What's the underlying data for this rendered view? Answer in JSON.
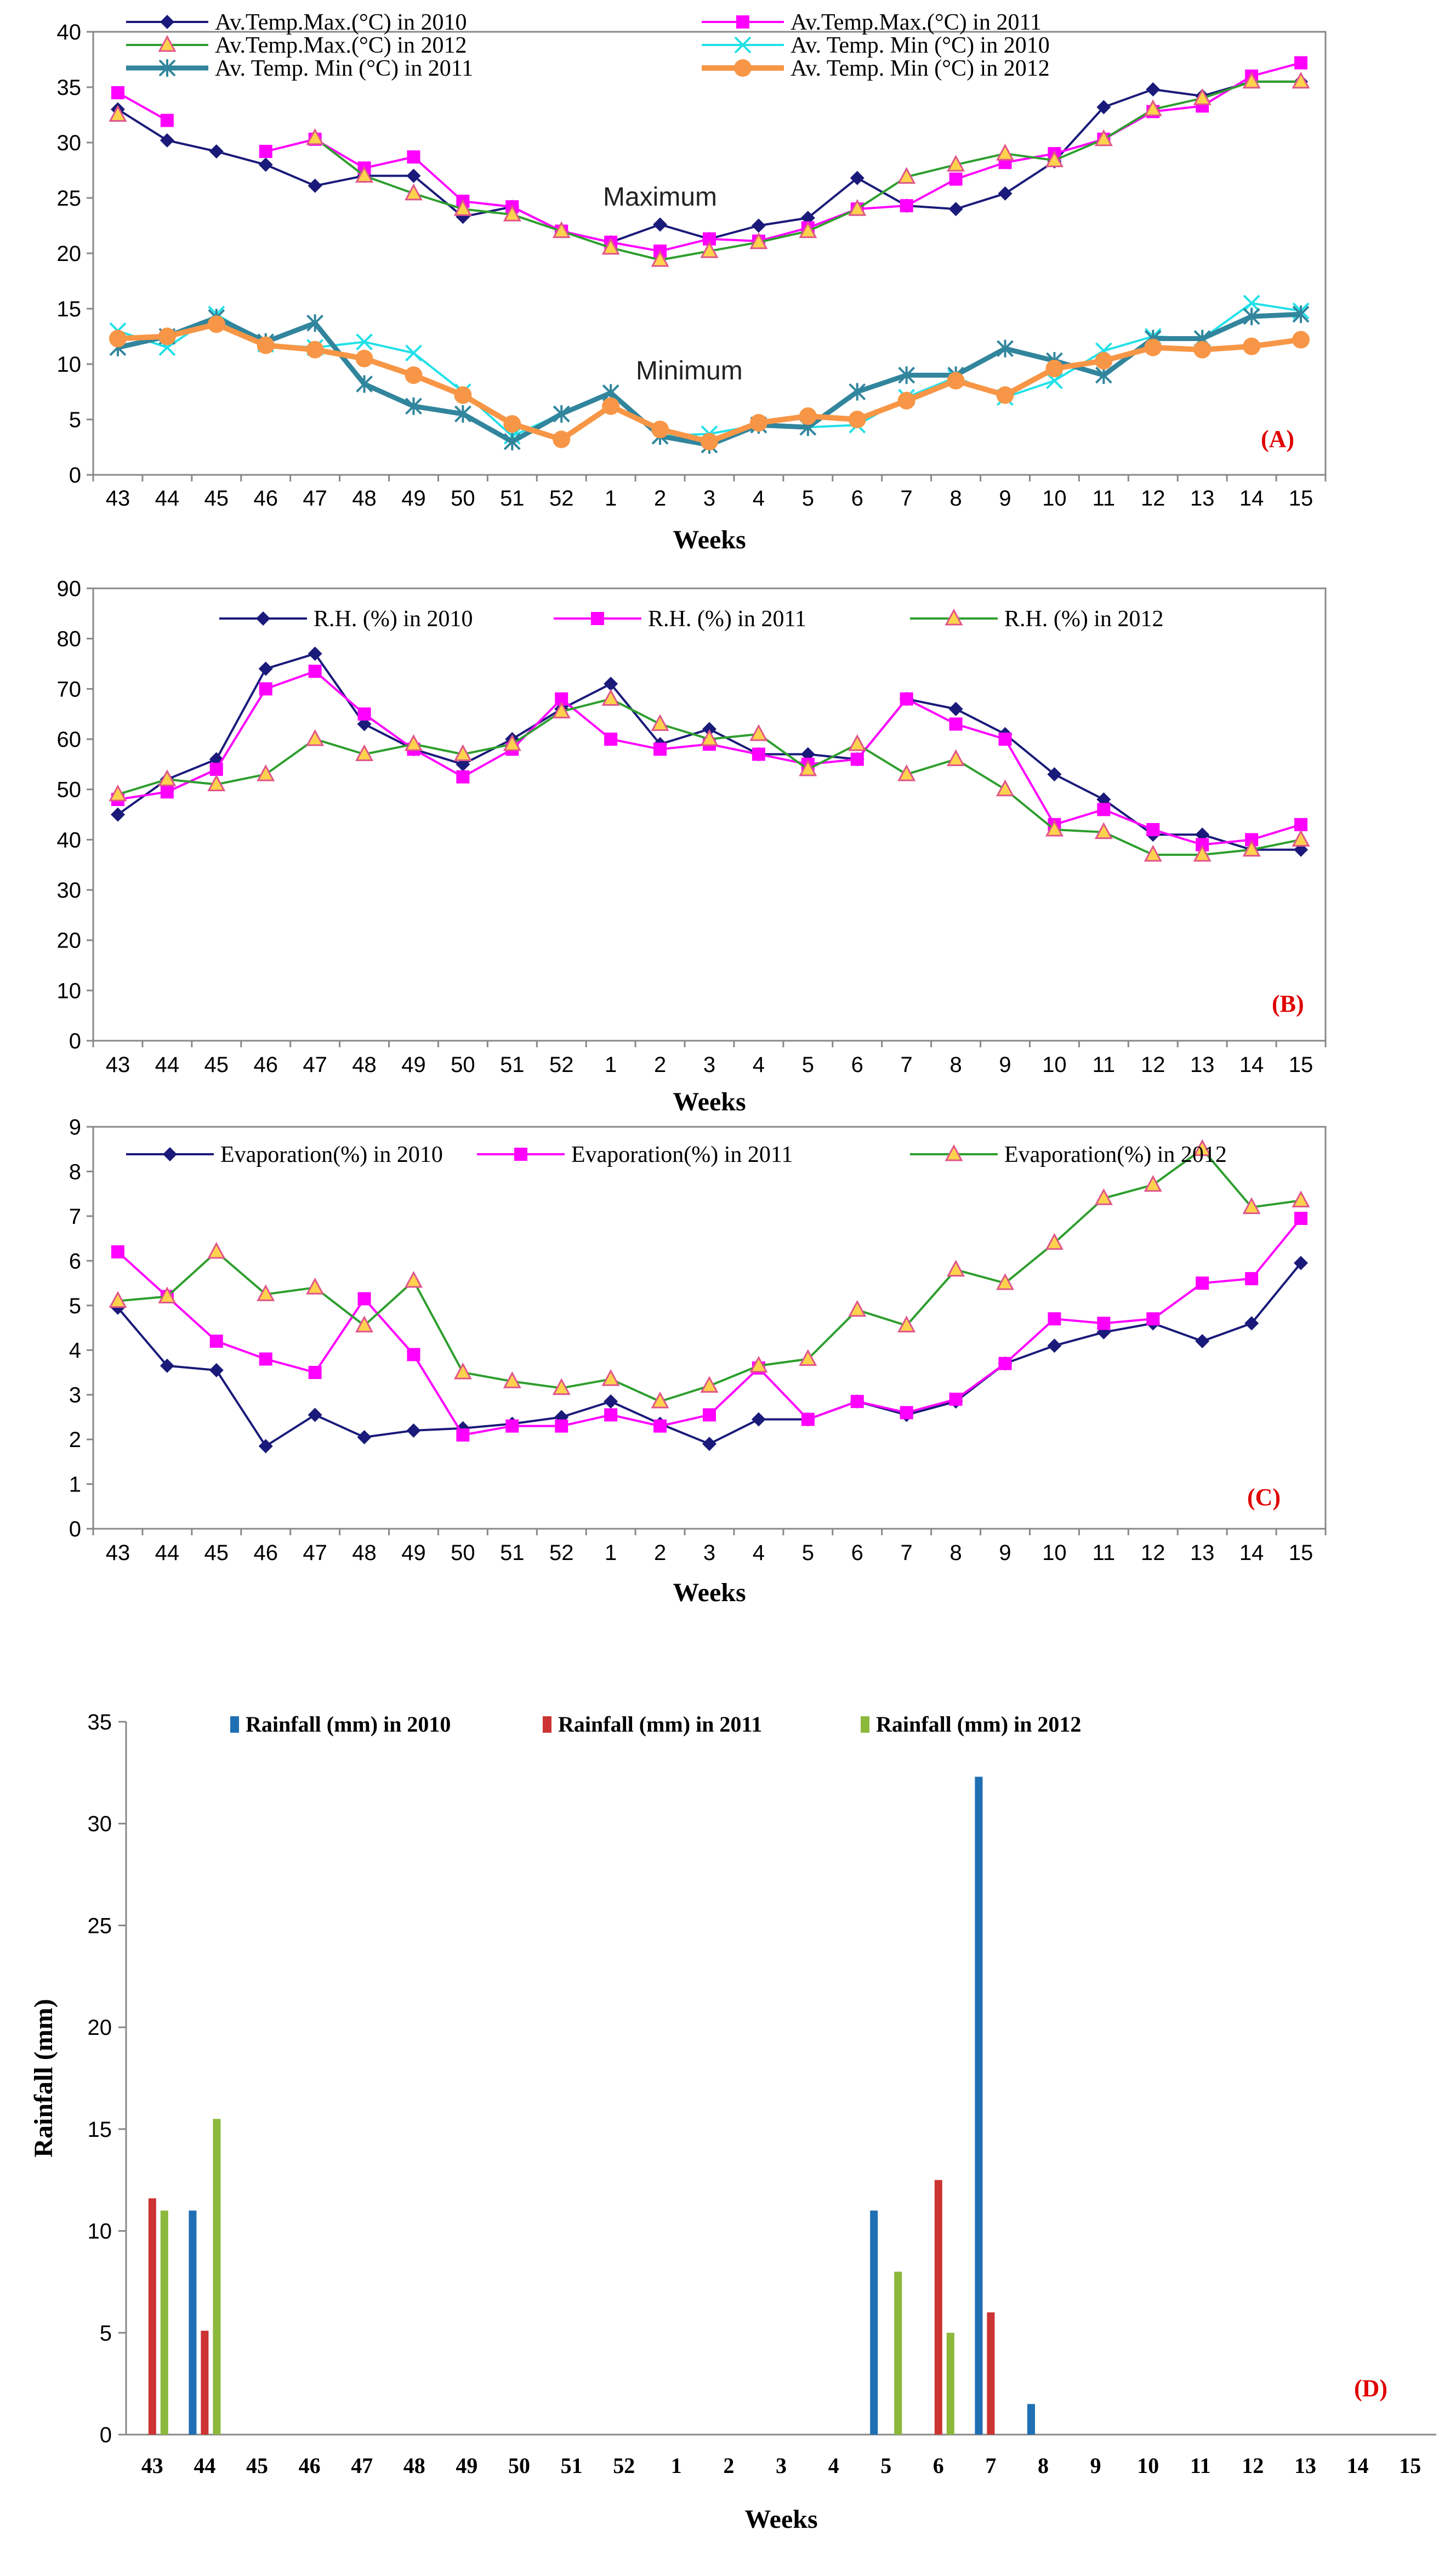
{
  "weeks": [
    "43",
    "44",
    "45",
    "46",
    "47",
    "48",
    "49",
    "50",
    "51",
    "52",
    "1",
    "2",
    "3",
    "4",
    "5",
    "6",
    "7",
    "8",
    "9",
    "10",
    "11",
    "12",
    "13",
    "14",
    "15"
  ],
  "chart_data": [
    {
      "id": "A",
      "type": "line",
      "panel_label": "(A)",
      "xlabel": "Weeks",
      "ylabel": "",
      "ylim": [
        0,
        40
      ],
      "yticks": [
        "0",
        "5",
        "10",
        "15",
        "20",
        "25",
        "30",
        "35",
        "40"
      ],
      "annotations": [
        "Maximum",
        "Minimum"
      ],
      "series": [
        {
          "name": "Av.Temp.Max.(°C) in 2010",
          "color": "#1a1a7a",
          "marker": "diamond",
          "width": 4,
          "values": [
            33,
            30.2,
            29.2,
            28,
            26.1,
            27,
            27,
            23.3,
            24.2,
            22,
            21,
            22.6,
            21.3,
            22.5,
            23.2,
            26.8,
            24.3,
            24,
            25.4,
            28.3,
            33.2,
            34.8,
            34.2,
            35.5,
            35.5
          ]
        },
        {
          "name": "Av.Temp.Max.(°C) in 2011",
          "color": "#ff00ff",
          "marker": "square",
          "width": 4,
          "values": [
            34.5,
            32,
            null,
            29.2,
            30.3,
            27.7,
            28.7,
            24.7,
            24.2,
            22,
            21,
            20.2,
            21.3,
            21.1,
            22.3,
            24,
            24.3,
            26.7,
            28.2,
            29,
            30.3,
            32.8,
            33.3,
            36,
            37.2
          ]
        },
        {
          "name": "Av.Temp.Max.(°C) in 2012",
          "color": "#2e9e2e",
          "marker": "triangle",
          "width": 4,
          "values": [
            32.5,
            null,
            null,
            null,
            30.4,
            27,
            25.4,
            24,
            23.5,
            22,
            20.5,
            19.4,
            20.2,
            21,
            22,
            24,
            26.9,
            28,
            29,
            28.4,
            30.3,
            33,
            34,
            35.5,
            35.5
          ]
        },
        {
          "name": "Av. Temp. Min (°C) in 2010",
          "color": "#22e0e8",
          "marker": "x",
          "width": 4,
          "values": [
            13,
            11.5,
            14.5,
            11.8,
            11.5,
            12,
            11,
            7.5,
            3.5,
            5.5,
            7.4,
            3.5,
            3.7,
            4.5,
            4.3,
            4.5,
            7,
            8.8,
            7,
            8.5,
            11.2,
            12.5,
            12.3,
            15.5,
            14.8
          ]
        },
        {
          "name": "Av. Temp. Min (°C) in 2011",
          "color": "#31859c",
          "marker": "star",
          "width": 9,
          "values": [
            11.5,
            12.5,
            14.2,
            12,
            13.7,
            8.2,
            6.2,
            5.5,
            3,
            5.5,
            7.4,
            3.5,
            2.7,
            4.5,
            4.3,
            7.5,
            9,
            9,
            11.4,
            10.3,
            9,
            12.3,
            12.3,
            14.3,
            14.5
          ]
        },
        {
          "name": "Av. Temp. Min (°C) in 2012",
          "color": "#f79646",
          "marker": "circle",
          "width": 10,
          "values": [
            12.3,
            12.5,
            13.6,
            11.7,
            11.3,
            10.5,
            9,
            7.2,
            4.6,
            3.2,
            6.2,
            4.1,
            3,
            4.7,
            5.3,
            5,
            6.7,
            8.5,
            7.2,
            9.6,
            10.3,
            11.5,
            11.3,
            11.6,
            12.2
          ]
        }
      ]
    },
    {
      "id": "B",
      "type": "line",
      "panel_label": "(B)",
      "xlabel": "Weeks",
      "ylabel": "",
      "ylim": [
        0,
        90
      ],
      "yticks": [
        "0",
        "10",
        "20",
        "30",
        "40",
        "50",
        "60",
        "70",
        "80",
        "90"
      ],
      "series": [
        {
          "name": "R.H. (%) in 2010",
          "color": "#1a1a7a",
          "marker": "diamond",
          "width": 4,
          "values": [
            45,
            52,
            56,
            74,
            77,
            63,
            58,
            55,
            60,
            66,
            71,
            59,
            62,
            57,
            57,
            56,
            68,
            66,
            61,
            53,
            48,
            41,
            41,
            38,
            38
          ]
        },
        {
          "name": "R.H. (%) in 2011",
          "color": "#ff00ff",
          "marker": "square",
          "width": 4,
          "values": [
            48,
            49.5,
            54,
            70,
            73.5,
            65,
            58,
            52.5,
            58,
            68,
            60,
            58,
            59,
            57,
            55,
            56,
            68,
            63,
            60,
            43,
            46,
            42,
            39,
            40,
            43
          ]
        },
        {
          "name": "R.H. (%) in 2012",
          "color": "#2e9e2e",
          "marker": "triangle",
          "width": 4,
          "values": [
            49,
            52,
            51,
            53,
            60,
            57,
            59,
            57,
            59,
            65.5,
            68,
            63,
            60,
            61,
            54,
            59,
            53,
            56,
            50,
            42,
            41.5,
            37,
            37,
            38,
            40
          ]
        }
      ]
    },
    {
      "id": "C",
      "type": "line",
      "panel_label": "(C)",
      "xlabel": "Weeks",
      "ylabel": "",
      "ylim": [
        0,
        9
      ],
      "yticks": [
        "0",
        "1",
        "2",
        "3",
        "4",
        "5",
        "6",
        "7",
        "8",
        "9"
      ],
      "series": [
        {
          "name": "Evaporation(%) in 2010",
          "color": "#1a1a7a",
          "marker": "diamond",
          "width": 4,
          "values": [
            4.95,
            3.65,
            3.55,
            1.85,
            2.55,
            2.05,
            2.2,
            2.25,
            2.35,
            2.5,
            2.85,
            2.35,
            1.9,
            2.45,
            2.45,
            2.85,
            2.55,
            2.85,
            3.7,
            4.1,
            4.4,
            4.6,
            4.2,
            4.6,
            5.95
          ]
        },
        {
          "name": "Evaporation(%) in 2011",
          "color": "#ff00ff",
          "marker": "square",
          "width": 4,
          "values": [
            6.2,
            5.2,
            4.2,
            3.8,
            3.5,
            5.15,
            3.9,
            2.1,
            2.3,
            2.3,
            2.55,
            2.3,
            2.55,
            3.6,
            2.45,
            2.85,
            2.6,
            2.9,
            3.7,
            4.7,
            4.6,
            4.7,
            5.5,
            5.6,
            6.95
          ]
        },
        {
          "name": "Evaporation(%) in 2012",
          "color": "#2e9e2e",
          "marker": "triangle",
          "width": 4,
          "values": [
            5.1,
            5.2,
            6.2,
            5.25,
            5.4,
            4.55,
            5.55,
            3.5,
            3.3,
            3.15,
            3.35,
            2.85,
            3.2,
            3.65,
            3.8,
            4.9,
            4.55,
            5.8,
            5.5,
            6.4,
            7.4,
            7.7,
            8.5,
            7.2,
            7.35
          ]
        }
      ]
    },
    {
      "id": "D",
      "type": "bar",
      "panel_label": "(D)",
      "xlabel": "Weeks",
      "ylabel": "Rainfall (mm)",
      "ylim": [
        0,
        35
      ],
      "yticks": [
        "0",
        "5",
        "10",
        "15",
        "20",
        "25",
        "30",
        "35"
      ],
      "series": [
        {
          "name": "Rainfall (mm) in 2010",
          "color": "#1f6fb4",
          "values": [
            0,
            11,
            0,
            0,
            0,
            0,
            0,
            0,
            0,
            0,
            0,
            0,
            0,
            0,
            11,
            0,
            32.3,
            1.5,
            0,
            0,
            0,
            0,
            0,
            0,
            0
          ]
        },
        {
          "name": "Rainfall (mm) in 2011",
          "color": "#cc3333",
          "values": [
            11.6,
            5.1,
            0,
            0,
            0,
            0,
            0,
            0,
            0,
            0,
            0,
            0,
            0,
            0,
            0,
            12.5,
            6,
            0,
            0,
            0,
            0,
            0,
            0,
            0,
            0
          ]
        },
        {
          "name": "Rainfall (mm) in 2012",
          "color": "#8cb83c",
          "values": [
            11,
            15.5,
            0,
            0,
            0,
            0,
            0,
            0,
            0,
            0,
            0,
            0,
            0,
            0,
            8,
            5,
            0,
            0,
            0,
            0,
            0,
            0,
            0,
            0,
            0
          ]
        }
      ]
    }
  ]
}
